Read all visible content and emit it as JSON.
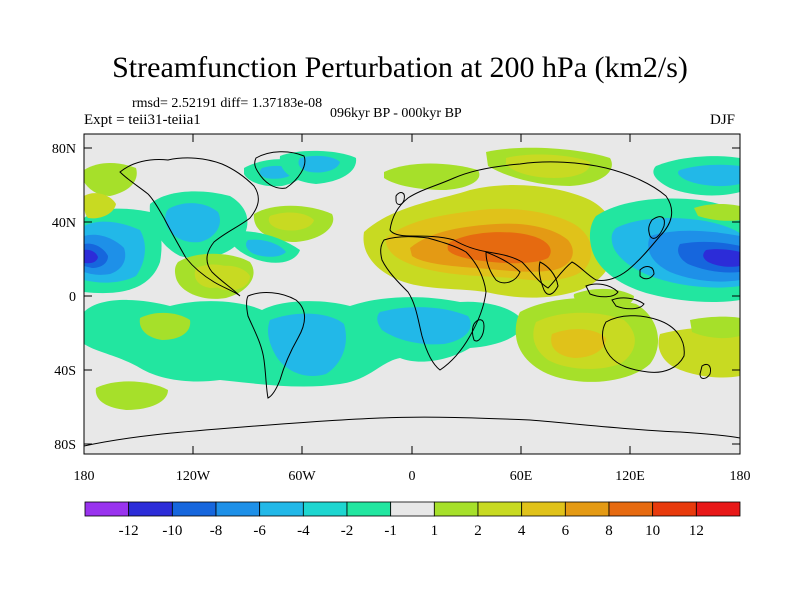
{
  "title": "Streamfunction Perturbation at 200 hPa (km2/s)",
  "stats": "rmsd= 2.52191 diff= 1.37183e-08",
  "experiment": "Expt = teii31-teiia1",
  "period": "096kyr BP - 000kyr BP",
  "season": "DJF",
  "map": {
    "lat_ticks": [
      "80N",
      "40N",
      "0",
      "40S",
      "80S"
    ],
    "lon_ticks": [
      "180",
      "120W",
      "60W",
      "0",
      "60E",
      "120E",
      "180"
    ]
  },
  "colorbar": {
    "labels": [
      "-12",
      "-10",
      "-8",
      "-6",
      "-4",
      "-2",
      "-1",
      "1",
      "2",
      "4",
      "6",
      "8",
      "10",
      "12"
    ],
    "colors": [
      "#9933ee",
      "#2c2cd8",
      "#1666dd",
      "#1e90e8",
      "#22b8e8",
      "#1ed6d0",
      "#22e6a0",
      "#e8e8e8",
      "#a6e02a",
      "#c8da22",
      "#e0c21a",
      "#e49a14",
      "#e66a10",
      "#e83a0c",
      "#e81818"
    ]
  }
}
